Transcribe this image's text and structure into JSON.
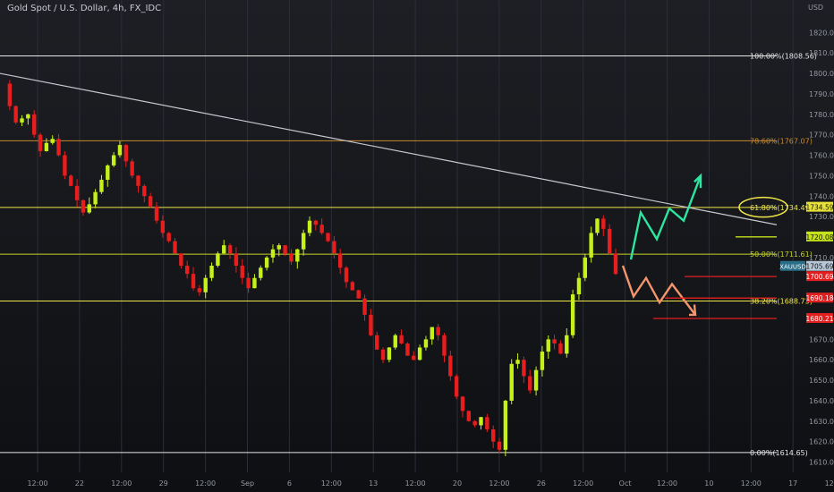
{
  "header": {
    "title": "Gold Spot / U.S. Dollar, 4h, FX_IDC",
    "unit": "USD"
  },
  "chart_data": {
    "type": "candlestick",
    "title": "Gold Spot / U.S. Dollar, 4h, FX_IDC",
    "y_unit": "USD",
    "ylim": [
      1605,
      1828
    ],
    "y_ticks": [
      1610,
      1620,
      1630,
      1640,
      1650,
      1660,
      1670,
      1680,
      1690,
      1700,
      1710,
      1720,
      1730,
      1740,
      1750,
      1760,
      1770,
      1780,
      1790,
      1800,
      1810,
      1820
    ],
    "x_tick_labels": [
      "12:00",
      "22",
      "12:00",
      "29",
      "12:00",
      "Sep",
      "6",
      "12:00",
      "13",
      "12:00",
      "20",
      "12:00",
      "26",
      "12:00",
      "Oct",
      "12:00",
      "10",
      "12:00",
      "17",
      "12:00"
    ],
    "grid": true,
    "colors": {
      "up": "#c6f01a",
      "down": "#e81d1d",
      "fib": "#f0e74a",
      "trendline": "#c8c8d0",
      "green_arrow": "#2ee6a0",
      "orange_arrow": "#f4956b",
      "red_line": "#e21f1f"
    },
    "fibonacci": [
      {
        "label": "100.00%(1808.56)",
        "level": 1808.56,
        "color": "#e6e6e6"
      },
      {
        "label": "78.60%(1767.07)",
        "level": 1767.07,
        "color": "#c68a2e"
      },
      {
        "label": "61.80%(1734.49)",
        "level": 1734.49,
        "color": "#f0e74a"
      },
      {
        "label": "50.00%(1711.61)",
        "level": 1711.61,
        "color": "#c6d22a"
      },
      {
        "label": "38.20%(1688.73)",
        "level": 1688.73,
        "color": "#f0e74a"
      },
      {
        "label": "0.00%(1614.65)",
        "level": 1614.65,
        "color": "#e6e6e6"
      }
    ],
    "price_labels": [
      {
        "text": "1734.59",
        "value": 1734.59,
        "bg": "#e6e03a",
        "fg": "#111111"
      },
      {
        "text": "1720.08",
        "value": 1720.08,
        "bg": "#c6e21d",
        "fg": "#111111"
      },
      {
        "text": "XAUUSD",
        "value": 1705.69,
        "bg": "#2a6f8a",
        "fg": "#ffffff",
        "tag": true
      },
      {
        "text": "1705.69",
        "value": 1705.69,
        "bg": "#b7c7d6",
        "fg": "#111111"
      },
      {
        "text": "1700.69",
        "value": 1700.69,
        "bg": "#e21f1f",
        "fg": "#ffffff"
      },
      {
        "text": "1690.18",
        "value": 1690.18,
        "bg": "#e21f1f",
        "fg": "#ffffff"
      },
      {
        "text": "1680.21",
        "value": 1680.21,
        "bg": "#e21f1f",
        "fg": "#ffffff"
      }
    ],
    "path": [
      1795,
      1784,
      1776,
      1778,
      1780,
      1770,
      1762,
      1766,
      1768,
      1760,
      1750,
      1745,
      1738,
      1732,
      1736,
      1742,
      1748,
      1755,
      1760,
      1765,
      1757,
      1750,
      1745,
      1740,
      1735,
      1728,
      1722,
      1718,
      1712,
      1706,
      1702,
      1695,
      1693,
      1700,
      1706,
      1712,
      1716,
      1712,
      1706,
      1700,
      1695,
      1700,
      1705,
      1710,
      1714,
      1716,
      1712,
      1708,
      1714,
      1722,
      1728,
      1726,
      1722,
      1718,
      1712,
      1705,
      1698,
      1694,
      1690,
      1682,
      1672,
      1665,
      1660,
      1666,
      1672,
      1668,
      1662,
      1660,
      1666,
      1670,
      1676,
      1672,
      1662,
      1652,
      1642,
      1635,
      1630,
      1628,
      1632,
      1626,
      1620,
      1616,
      1640,
      1658,
      1660,
      1652,
      1645,
      1655,
      1664,
      1670,
      1668,
      1663,
      1672,
      1692,
      1700,
      1710,
      1722,
      1729,
      1724,
      1712,
      1702
    ]
  }
}
